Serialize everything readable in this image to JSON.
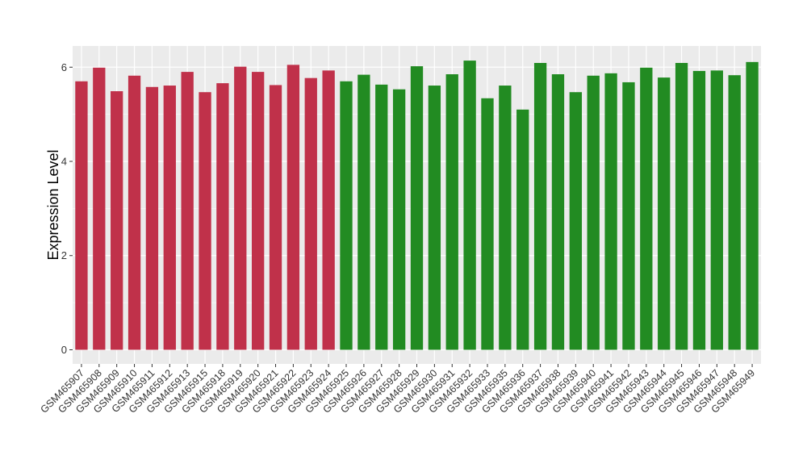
{
  "chart_data": {
    "type": "bar",
    "ylabel": "Expression Level",
    "xlabel": "",
    "ylim": [
      -0.3,
      6.45
    ],
    "yticks": [
      0,
      2,
      4,
      6
    ],
    "grid": true,
    "legend": "none",
    "colors": {
      "group1": "#c0314a",
      "group2": "#228b22",
      "panel": "#ebebeb",
      "grid": "#ffffff"
    },
    "categories": [
      "GSM465907",
      "GSM465908",
      "GSM465909",
      "GSM465910",
      "GSM465911",
      "GSM465912",
      "GSM465913",
      "GSM465915",
      "GSM465918",
      "GSM465919",
      "GSM465920",
      "GSM465921",
      "GSM465922",
      "GSM465923",
      "GSM465924",
      "GSM465925",
      "GSM465926",
      "GSM465927",
      "GSM465928",
      "GSM465929",
      "GSM465930",
      "GSM465931",
      "GSM465932",
      "GSM465933",
      "GSM465935",
      "GSM465936",
      "GSM465937",
      "GSM465938",
      "GSM465939",
      "GSM465940",
      "GSM465941",
      "GSM465942",
      "GSM465943",
      "GSM465944",
      "GSM465945",
      "GSM465946",
      "GSM465947",
      "GSM465948",
      "GSM465949"
    ],
    "values": [
      5.7,
      5.99,
      5.49,
      5.82,
      5.58,
      5.61,
      5.9,
      5.47,
      5.66,
      6.01,
      5.9,
      5.62,
      6.05,
      5.77,
      5.93,
      5.7,
      5.84,
      5.63,
      5.53,
      6.02,
      5.61,
      5.85,
      6.14,
      5.34,
      5.61,
      5.1,
      6.09,
      5.85,
      5.47,
      5.82,
      5.87,
      5.68,
      5.99,
      5.78,
      6.09,
      5.92,
      5.93,
      5.83,
      6.11
    ],
    "groups": [
      1,
      1,
      1,
      1,
      1,
      1,
      1,
      1,
      1,
      1,
      1,
      1,
      1,
      1,
      1,
      2,
      2,
      2,
      2,
      2,
      2,
      2,
      2,
      2,
      2,
      2,
      2,
      2,
      2,
      2,
      2,
      2,
      2,
      2,
      2,
      2,
      2,
      2,
      2
    ]
  }
}
